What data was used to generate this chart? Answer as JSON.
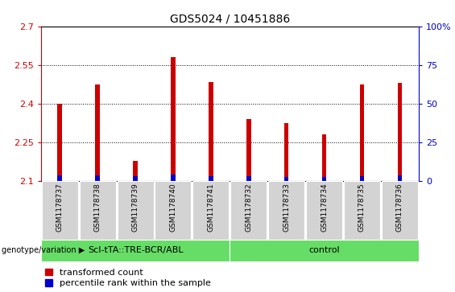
{
  "title": "GDS5024 / 10451886",
  "samples": [
    "GSM1178737",
    "GSM1178738",
    "GSM1178739",
    "GSM1178740",
    "GSM1178741",
    "GSM1178732",
    "GSM1178733",
    "GSM1178734",
    "GSM1178735",
    "GSM1178736"
  ],
  "red_values": [
    2.401,
    2.473,
    2.178,
    2.582,
    2.483,
    2.34,
    2.325,
    2.28,
    2.473,
    2.482
  ],
  "blue_values": [
    2.122,
    2.122,
    2.118,
    2.125,
    2.12,
    2.118,
    2.116,
    2.116,
    2.12,
    2.122
  ],
  "y_min": 2.1,
  "y_max": 2.7,
  "y_ticks": [
    2.1,
    2.25,
    2.4,
    2.55,
    2.7
  ],
  "y2_tick_labels": [
    "0",
    "25",
    "50",
    "75",
    "100%"
  ],
  "groups": [
    {
      "label": "ScI-tTA::TRE-BCR/ABL",
      "start": 0,
      "end": 5
    },
    {
      "label": "control",
      "start": 5,
      "end": 10
    }
  ],
  "bar_bg_color": "#d3d3d3",
  "chart_bg_color": "#ffffff",
  "group_color": "#66dd66",
  "red_color": "#cc0000",
  "blue_color": "#0000cc",
  "title_fontsize": 10,
  "tick_fontsize": 8,
  "label_fontsize": 7.5,
  "legend_fontsize": 8,
  "bar_width": 0.12
}
